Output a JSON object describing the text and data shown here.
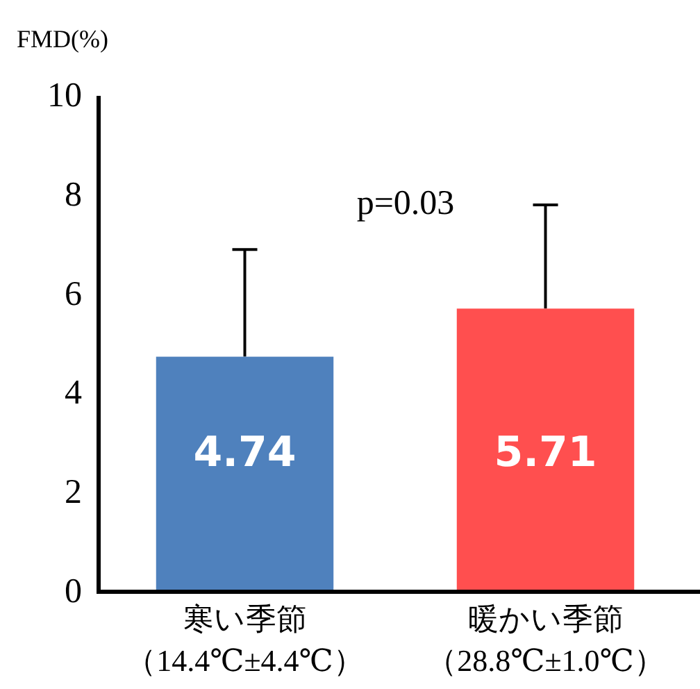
{
  "chart_data": {
    "type": "bar",
    "ylabel": "FMD(%)",
    "categories": [
      "寒い季節（14.4℃±4.4℃）",
      "暖かい季節（28.8℃±1.0℃）"
    ],
    "values": [
      4.74,
      5.71
    ],
    "colors": [
      "#4f81bd",
      "#ff4f4f"
    ],
    "errors": [
      [
        4.74,
        6.9
      ],
      [
        5.71,
        7.8
      ]
    ],
    "ylim": [
      0,
      10
    ],
    "yticks": [
      0,
      2,
      4,
      6,
      8,
      10
    ],
    "data_labels": true,
    "grid": false,
    "annotations": [
      "p=0.03"
    ]
  }
}
